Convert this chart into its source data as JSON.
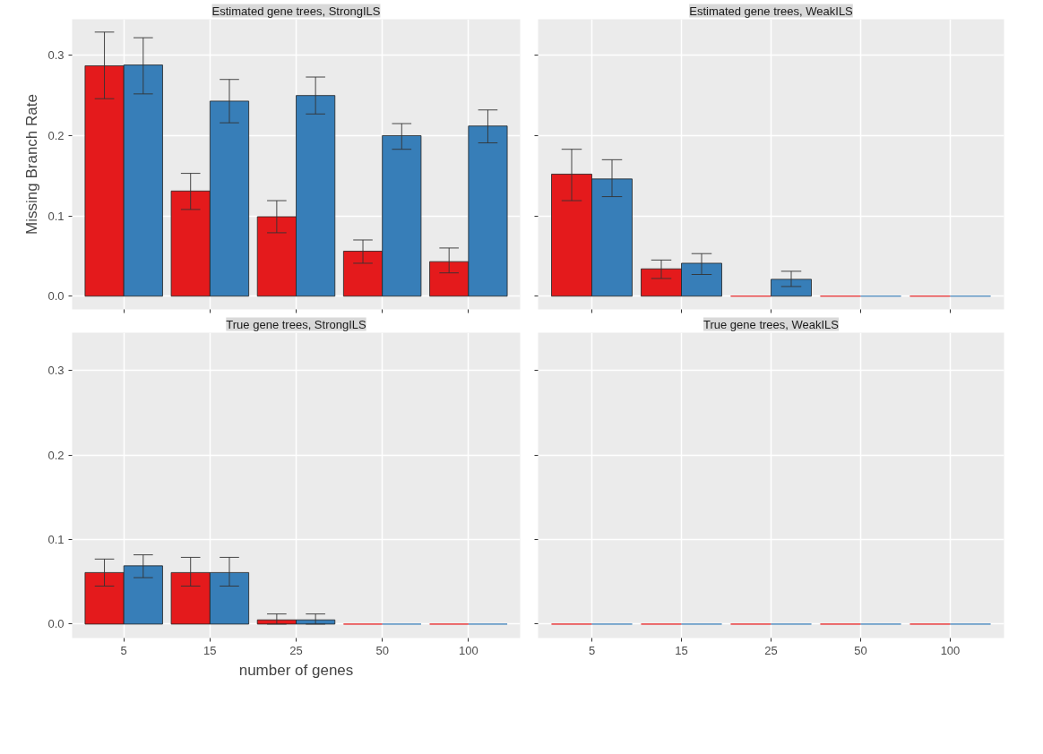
{
  "chart_data": [
    {
      "type": "bar",
      "title": "Estimated gene trees, StrongILS",
      "ylabel": "Missing Branch Rate",
      "categories": [
        "5",
        "15",
        "25",
        "50",
        "100"
      ],
      "ylim": [
        -0.0165,
        0.345
      ],
      "yticks": [
        {
          "value": 0,
          "label": "0.0"
        },
        0.1,
        0.2,
        0.3
      ],
      "grid": true,
      "tick_labels": "y",
      "series": [
        {
          "color": "#e41a1c",
          "values": [
            0.287,
            0.131,
            0.099,
            0.056,
            0.043
          ],
          "errors": [
            [
              0.246,
              0.329
            ],
            [
              0.108,
              0.153
            ],
            [
              0.079,
              0.119
            ],
            [
              0.041,
              0.07
            ],
            [
              0.029,
              0.06
            ]
          ]
        },
        {
          "color": "#377eb8",
          "values": [
            0.288,
            0.243,
            0.25,
            0.2,
            0.212
          ],
          "errors": [
            [
              0.252,
              0.322
            ],
            [
              0.216,
              0.27
            ],
            [
              0.227,
              0.273
            ],
            [
              0.183,
              0.215
            ],
            [
              0.191,
              0.232
            ]
          ]
        }
      ]
    },
    {
      "type": "bar",
      "title": "Estimated gene trees, WeakILS",
      "categories": [
        "5",
        "15",
        "25",
        "50",
        "100"
      ],
      "ylim": [
        -0.0165,
        0.345
      ],
      "yticks": [
        0,
        0.1,
        0.2,
        0.3
      ],
      "grid": true,
      "tick_labels": false,
      "series": [
        {
          "color": "#e41a1c",
          "values": [
            0.152,
            0.034,
            0,
            0,
            0
          ],
          "errors": [
            [
              0.119,
              0.183
            ],
            [
              0.022,
              0.045
            ],
            null,
            null,
            null
          ]
        },
        {
          "color": "#377eb8",
          "values": [
            0.146,
            0.041,
            0.021,
            0,
            0
          ],
          "errors": [
            [
              0.124,
              0.17
            ],
            [
              0.027,
              0.053
            ],
            [
              0.012,
              0.031
            ],
            null,
            null
          ]
        }
      ]
    },
    {
      "type": "bar",
      "title": "True gene trees, StrongILS",
      "xlabel": "number of genes",
      "categories": [
        "5",
        "15",
        "25",
        "50",
        "100"
      ],
      "ylim": [
        -0.0165,
        0.345
      ],
      "yticks": [
        {
          "value": 0,
          "label": "0.0"
        },
        0.1,
        0.2,
        0.3
      ],
      "grid": true,
      "series": [
        {
          "color": "#e41a1c",
          "values": [
            0.061,
            0.061,
            0.005,
            0,
            0
          ],
          "errors": [
            [
              0.045,
              0.077
            ],
            [
              0.045,
              0.079
            ],
            [
              0,
              0.012
            ],
            null,
            null
          ]
        },
        {
          "color": "#377eb8",
          "values": [
            0.069,
            0.061,
            0.005,
            0,
            0
          ],
          "errors": [
            [
              0.055,
              0.082
            ],
            [
              0.045,
              0.079
            ],
            [
              0,
              0.012
            ],
            null,
            null
          ]
        }
      ]
    },
    {
      "type": "bar",
      "title": "True gene trees, WeakILS",
      "categories": [
        "5",
        "15",
        "25",
        "50",
        "100"
      ],
      "ylim": [
        -0.0165,
        0.345
      ],
      "yticks": [
        0,
        0.1,
        0.2,
        0.3
      ],
      "grid": true,
      "tick_labels": "x",
      "series": [
        {
          "color": "#e41a1c",
          "values": [
            0,
            0,
            0,
            0,
            0
          ]
        },
        {
          "color": "#377eb8",
          "values": [
            0,
            0,
            0,
            0,
            0
          ]
        }
      ]
    }
  ]
}
